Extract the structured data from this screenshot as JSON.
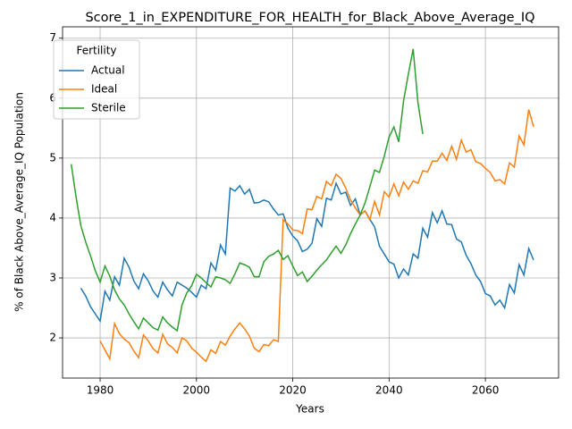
{
  "chart_data": {
    "type": "line",
    "title": "Score_1_in_EXPENDITURE_FOR_HEALTH_for_Black_Above_Average_IQ",
    "xlabel": "Years",
    "ylabel": "% of Black Above_Average_IQ Population",
    "legend_title": "Fertility",
    "legend": "upper left",
    "grid": true,
    "xlim": [
      1972.2,
      2075.2
    ],
    "xticks": [
      1980,
      2000,
      2020,
      2040,
      2060
    ],
    "ylim": [
      1.33,
      7.19
    ],
    "yticks": [
      2,
      3,
      4,
      5,
      6,
      7
    ],
    "x": [
      1974,
      1975,
      1976,
      1977,
      1978,
      1979,
      1980,
      1981,
      1982,
      1983,
      1984,
      1985,
      1986,
      1987,
      1988,
      1989,
      1990,
      1991,
      1992,
      1993,
      1994,
      1995,
      1996,
      1997,
      1998,
      1999,
      2000,
      2001,
      2002,
      2003,
      2004,
      2005,
      2006,
      2007,
      2008,
      2009,
      2010,
      2011,
      2012,
      2013,
      2014,
      2015,
      2016,
      2017,
      2018,
      2019,
      2020,
      2021,
      2022,
      2023,
      2024,
      2025,
      2026,
      2027,
      2028,
      2029,
      2030,
      2031,
      2032,
      2033,
      2034,
      2035,
      2036,
      2037,
      2038,
      2039,
      2040,
      2041,
      2042,
      2043,
      2044,
      2045,
      2046,
      2047,
      2048,
      2049,
      2050,
      2051,
      2052,
      2053,
      2054,
      2055,
      2056,
      2057,
      2058,
      2059,
      2060,
      2061,
      2062,
      2063,
      2064,
      2065,
      2066,
      2067,
      2068,
      2069,
      2070
    ],
    "series": [
      {
        "name": "Actual",
        "color": "#1f77b4",
        "values": [
          null,
          null,
          2.83,
          2.7,
          2.52,
          2.4,
          2.28,
          2.78,
          2.63,
          3.02,
          2.88,
          3.33,
          3.18,
          2.95,
          2.82,
          3.07,
          2.95,
          2.78,
          2.68,
          2.93,
          2.8,
          2.7,
          2.93,
          2.88,
          2.83,
          2.76,
          2.68,
          2.88,
          2.82,
          3.25,
          3.13,
          3.55,
          3.4,
          4.5,
          4.45,
          4.54,
          4.4,
          4.48,
          4.25,
          4.26,
          4.3,
          4.27,
          4.15,
          4.05,
          4.07,
          3.83,
          3.7,
          3.62,
          3.44,
          3.48,
          3.58,
          3.99,
          3.86,
          4.33,
          4.3,
          4.58,
          4.4,
          4.43,
          4.21,
          4.32,
          4.05,
          4.12,
          3.98,
          3.85,
          3.53,
          3.4,
          3.27,
          3.23,
          3.0,
          3.15,
          3.05,
          3.4,
          3.33,
          3.83,
          3.68,
          4.09,
          3.92,
          4.12,
          3.9,
          3.89,
          3.65,
          3.6,
          3.38,
          3.24,
          3.05,
          2.94,
          2.74,
          2.7,
          2.55,
          2.63,
          2.5,
          2.89,
          2.75,
          3.22,
          3.05,
          3.49,
          3.3
        ]
      },
      {
        "name": "Ideal",
        "color": "#ff7f0e",
        "values": [
          null,
          null,
          null,
          null,
          null,
          null,
          1.95,
          1.8,
          1.65,
          2.24,
          2.07,
          1.98,
          1.92,
          1.78,
          1.67,
          2.05,
          1.95,
          1.82,
          1.75,
          2.06,
          1.9,
          1.84,
          1.75,
          2.0,
          1.95,
          1.83,
          1.76,
          1.68,
          1.61,
          1.8,
          1.74,
          1.94,
          1.88,
          2.03,
          2.15,
          2.25,
          2.15,
          2.03,
          1.83,
          1.77,
          1.89,
          1.87,
          1.97,
          1.94,
          3.97,
          3.9,
          3.8,
          3.79,
          3.74,
          4.15,
          4.14,
          4.36,
          4.32,
          4.61,
          4.54,
          4.73,
          4.66,
          4.5,
          4.3,
          4.17,
          4.05,
          4.12,
          3.97,
          4.28,
          4.05,
          4.44,
          4.35,
          4.57,
          4.37,
          4.6,
          4.48,
          4.62,
          4.58,
          4.79,
          4.77,
          4.95,
          4.95,
          5.08,
          4.96,
          5.2,
          4.98,
          5.3,
          5.1,
          5.14,
          4.94,
          4.91,
          4.83,
          4.76,
          4.62,
          4.64,
          4.57,
          4.92,
          4.85,
          5.37,
          5.22,
          5.81,
          5.52
        ]
      },
      {
        "name": "Sterile",
        "color": "#2ca02c",
        "values": [
          4.9,
          4.35,
          3.87,
          3.6,
          3.37,
          3.12,
          2.93,
          3.2,
          3.03,
          2.8,
          2.65,
          2.55,
          2.4,
          2.27,
          2.15,
          2.33,
          2.25,
          2.17,
          2.13,
          2.35,
          2.25,
          2.18,
          2.12,
          2.55,
          2.75,
          2.87,
          3.06,
          3.0,
          2.92,
          2.85,
          3.02,
          3.0,
          2.97,
          2.91,
          3.07,
          3.25,
          3.22,
          3.18,
          3.02,
          3.02,
          3.27,
          3.36,
          3.4,
          3.46,
          3.31,
          3.37,
          3.2,
          3.04,
          3.1,
          2.94,
          3.03,
          3.13,
          3.22,
          3.3,
          3.42,
          3.53,
          3.41,
          3.55,
          3.74,
          3.9,
          4.05,
          4.25,
          4.52,
          4.8,
          4.76,
          5.03,
          5.35,
          5.52,
          5.27,
          5.95,
          6.4,
          6.82,
          5.92,
          5.4,
          null,
          null,
          null,
          null,
          null,
          null,
          null,
          null,
          null,
          null,
          null,
          null,
          null,
          null,
          null,
          null,
          null,
          null,
          null,
          null,
          null,
          null,
          null
        ]
      }
    ]
  }
}
